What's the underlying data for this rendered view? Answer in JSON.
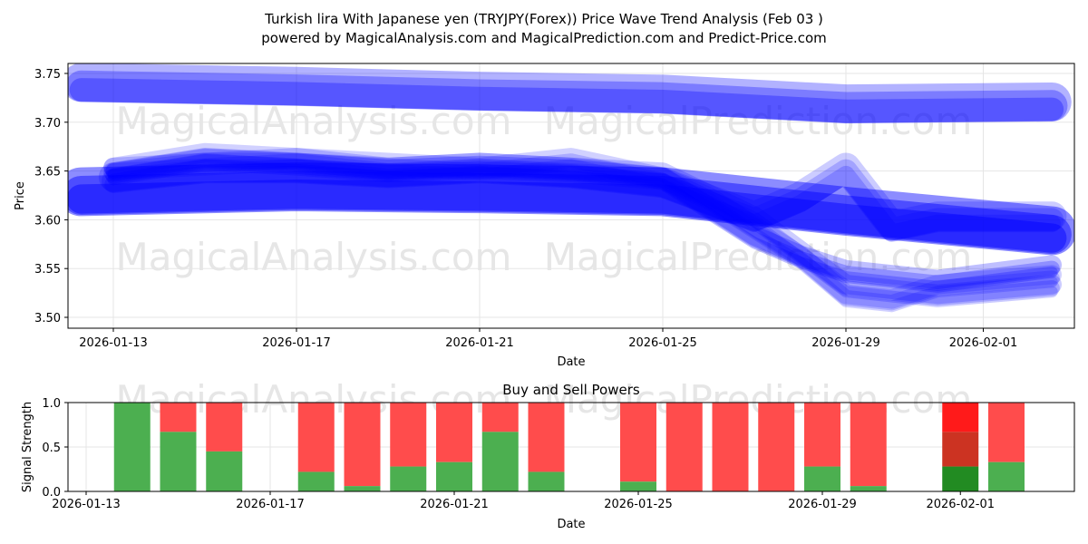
{
  "title_line1": "Turkish lira With Japanese yen (TRYJPY(Forex)) Price Wave Trend Analysis (Feb 03 )",
  "title_line2": "powered by MagicalAnalysis.com and MagicalPrediction.com and Predict-Price.com",
  "watermarks": [
    "MagicalAnalysis.com",
    "MagicalPrediction.com"
  ],
  "colors": {
    "wave": "#0000ff",
    "buy": "#4caf50",
    "sell": "#ff4c4c",
    "buy_strong": "#228b22",
    "sell_mid": "#cc3322",
    "sell_strong": "#ff1a1a"
  },
  "chart_data": [
    {
      "type": "line",
      "title": "",
      "xlabel": "Date",
      "ylabel": "Price",
      "ylim": [
        3.49,
        3.76
      ],
      "yticks": [
        "3.50",
        "3.55",
        "3.60",
        "3.65",
        "3.70",
        "3.75"
      ],
      "xticks": [
        "2026-01-13",
        "2026-01-17",
        "2026-01-21",
        "2026-01-25",
        "2026-01-29",
        "2026-02-01"
      ],
      "series": [
        {
          "name": "wave-upper",
          "x": [
            -0.7,
            4,
            8,
            12,
            16,
            20.5
          ],
          "values": [
            3.737,
            3.733,
            3.728,
            3.725,
            3.715,
            3.717
          ],
          "width": 0.04,
          "opacity": 0.3
        },
        {
          "name": "wave-lower",
          "x": [
            -0.7,
            4,
            8,
            12,
            16,
            20.5
          ],
          "values": [
            3.625,
            3.63,
            3.628,
            3.625,
            3.605,
            3.585
          ],
          "width": 0.05,
          "opacity": 0.45
        },
        {
          "name": "wave-mid-1",
          "x": [
            0,
            2,
            4,
            6,
            8,
            10,
            12,
            14,
            15,
            16,
            18,
            20.5
          ],
          "values": [
            3.645,
            3.66,
            3.655,
            3.648,
            3.652,
            3.648,
            3.64,
            3.58,
            3.56,
            3.545,
            3.535,
            3.55
          ],
          "width": 0.02,
          "opacity": 0.25
        },
        {
          "name": "wave-mid-2",
          "x": [
            0,
            2,
            4,
            6,
            8,
            10,
            12,
            14,
            16,
            18,
            20.5
          ],
          "values": [
            3.65,
            3.655,
            3.66,
            3.65,
            3.655,
            3.65,
            3.645,
            3.6,
            3.53,
            3.52,
            3.53
          ],
          "width": 0.02,
          "opacity": 0.2
        },
        {
          "name": "wave-mid-3",
          "x": [
            0,
            2,
            4,
            6,
            8,
            10,
            12,
            13,
            14,
            15,
            16,
            17,
            18,
            20.5
          ],
          "values": [
            3.65,
            3.665,
            3.66,
            3.655,
            3.65,
            3.66,
            3.64,
            3.62,
            3.59,
            3.56,
            3.52,
            3.515,
            3.53,
            3.54
          ],
          "width": 0.02,
          "opacity": 0.18
        },
        {
          "name": "wave-mid-4",
          "x": [
            0,
            2,
            4,
            6,
            8,
            10,
            12,
            14,
            15,
            16,
            17,
            18,
            20.5
          ],
          "values": [
            3.64,
            3.65,
            3.65,
            3.645,
            3.65,
            3.645,
            3.635,
            3.6,
            3.62,
            3.65,
            3.59,
            3.6,
            3.6
          ],
          "width": 0.03,
          "opacity": 0.2
        }
      ]
    },
    {
      "type": "bar",
      "title": "Buy and Sell Powers",
      "xlabel": "Date",
      "ylabel": "Signal Strength",
      "ylim": [
        0,
        1.0
      ],
      "yticks": [
        "0.0",
        "0.5",
        "1.0"
      ],
      "xticks": [
        "2026-01-13",
        "2026-01-17",
        "2026-01-21",
        "2026-01-25",
        "2026-01-29",
        "2026-02-01"
      ],
      "day_offsets": [
        1,
        2,
        3,
        5,
        6,
        7,
        8,
        9,
        10,
        12,
        13,
        14,
        15,
        16,
        17,
        19,
        20
      ],
      "buy": [
        1.0,
        0.67,
        0.45,
        0.22,
        0.06,
        0.28,
        0.33,
        0.67,
        0.22,
        0.11,
        0,
        0,
        0,
        0.28,
        0.06,
        0.28,
        0.33
      ],
      "sell_mid": [
        0,
        0,
        0,
        0,
        0,
        0,
        0,
        0,
        0,
        0,
        0,
        0,
        0,
        0,
        0,
        0.39,
        0
      ]
    }
  ]
}
